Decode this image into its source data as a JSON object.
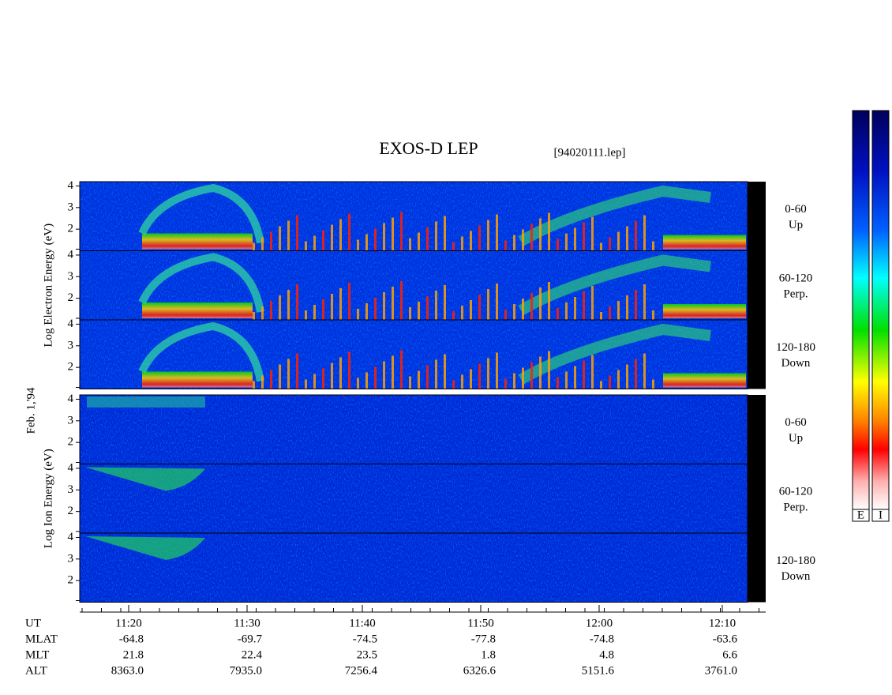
{
  "chart_data": {
    "type": "spectrogram",
    "title": "EXOS-D LEP",
    "file_label": "[94020111.lep]",
    "date_label": "Feb. 1,'94",
    "ylim": [
      1,
      4.2
    ],
    "yticks": [
      2,
      3,
      4
    ],
    "groups": [
      {
        "label": "Log Electron Energy (eV)",
        "kind": "electron",
        "panels": [
          {
            "range": "0-60",
            "direction": "Up"
          },
          {
            "range": "60-120",
            "direction": "Perp."
          },
          {
            "range": "120-180",
            "direction": "Down"
          }
        ]
      },
      {
        "label": "Log Ion Energy (eV)",
        "kind": "ion",
        "panels": [
          {
            "range": "0-60",
            "direction": "Up"
          },
          {
            "range": "60-120",
            "direction": "Perp."
          },
          {
            "range": "120-180",
            "direction": "Down"
          }
        ]
      }
    ],
    "x_rows": [
      {
        "name": "UT",
        "values": [
          "11:20",
          "11:30",
          "11:40",
          "11:50",
          "12:00",
          "12:10"
        ]
      },
      {
        "name": "MLAT",
        "values": [
          "-64.8",
          "-69.7",
          "-74.5",
          "-77.8",
          "-74.8",
          "-63.6"
        ]
      },
      {
        "name": "MLT",
        "values": [
          "21.8",
          "22.4",
          "23.5",
          "1.8",
          "4.8",
          "6.6"
        ]
      },
      {
        "name": "ALT",
        "values": [
          "8363.0",
          "7935.0",
          "7256.4",
          "6326.6",
          "5151.6",
          "3761.0"
        ]
      }
    ],
    "colorbar_labels": [
      "E",
      "I"
    ]
  }
}
